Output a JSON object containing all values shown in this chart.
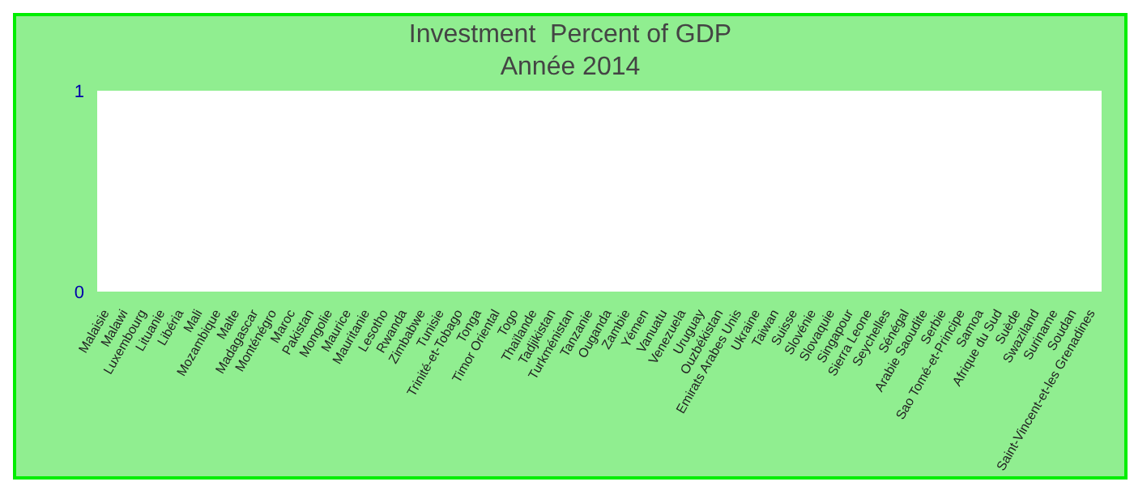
{
  "chart_data": {
    "type": "bar",
    "title": "Investment  Percent of GDP",
    "subtitle": "Année 2014",
    "categories": [
      "Malaisie",
      "Malawi",
      "Luxembourg",
      "Lituanie",
      "Libéria",
      "Mali",
      "Mozambique",
      "Malte",
      "Madagascar",
      "Monténégro",
      "Maroc",
      "Pakistan",
      "Mongolie",
      "Maurice",
      "Mauritanie",
      "Lesotho",
      "Rwanda",
      "Zimbabwe",
      "Tunisie",
      "Trinité-et-Tobago",
      "Tonga",
      "Timor Oriental",
      "Togo",
      "Thaïlande",
      "Tadjikistan",
      "Turkménistan",
      "Tanzanie",
      "Ouganda",
      "Zambie",
      "Yémen",
      "Vanuatu",
      "Venezuela",
      "Uruguay",
      "Ouzbékistan",
      "Emirats Arabes Unis",
      "Ukraine",
      "Taiwan",
      "Suisse",
      "Slovénie",
      "Slovaquie",
      "Singapour",
      "Sierra Leone",
      "Seychelles",
      "Sénégal",
      "Arabie Saoudite",
      "Serbie",
      "Sao Tomé-et-Principe",
      "Samoa",
      "Afrique du Sud",
      "Suède",
      "Swaziland",
      "Suriname",
      "Soudan",
      "Saint-Vincent-et-les Grenadines"
    ],
    "values": [
      null,
      null,
      null,
      null,
      null,
      null,
      null,
      null,
      null,
      null,
      null,
      null,
      null,
      null,
      null,
      null,
      null,
      null,
      null,
      null,
      null,
      null,
      null,
      null,
      null,
      null,
      null,
      null,
      null,
      null,
      null,
      null,
      null,
      null,
      null,
      null,
      null,
      null,
      null,
      null,
      null,
      null,
      null,
      null,
      null,
      null,
      null,
      null,
      null,
      null,
      null,
      null,
      null,
      null
    ],
    "ylim": [
      0,
      1
    ],
    "yticks": [
      0,
      1
    ],
    "grid": false,
    "legend": false
  }
}
